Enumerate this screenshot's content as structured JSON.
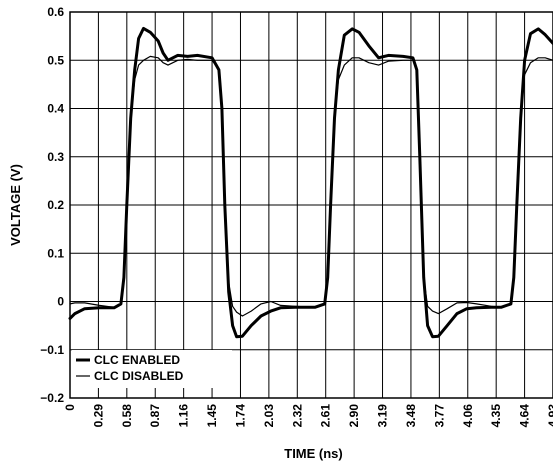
{
  "chart_data": {
    "type": "line",
    "xlabel": "TIME (ns)",
    "ylabel": "VOLTAGE (V)",
    "x_ticks": [
      "0",
      "0.29",
      "0.58",
      "0.87",
      "1.16",
      "1.45",
      "1.74",
      "2.03",
      "2.32",
      "2.61",
      "2.90",
      "3.19",
      "3.48",
      "3.77",
      "4.06",
      "4.35",
      "4.64",
      "4.93"
    ],
    "y_ticks": [
      "0.6",
      "0.5",
      "0.4",
      "0.3",
      "0.2",
      "0.1",
      "0",
      "−0.1",
      "−0.2"
    ],
    "xlim": [
      0,
      4.93
    ],
    "ylim": [
      -0.2,
      0.6
    ],
    "grid": true,
    "legend_position": "bottom-left",
    "series": [
      {
        "name": "CLC ENABLED",
        "style": "thick",
        "x": [
          0,
          0.05,
          0.15,
          0.3,
          0.45,
          0.52,
          0.55,
          0.58,
          0.62,
          0.66,
          0.7,
          0.75,
          0.82,
          0.9,
          0.95,
          1.0,
          1.05,
          1.1,
          1.2,
          1.3,
          1.45,
          1.52,
          1.55,
          1.58,
          1.62,
          1.66,
          1.7,
          1.76,
          1.85,
          1.95,
          2.05,
          2.15,
          2.3,
          2.5,
          2.6,
          2.63,
          2.66,
          2.7,
          2.74,
          2.8,
          2.88,
          2.95,
          3.05,
          3.15,
          3.25,
          3.4,
          3.5,
          3.54,
          3.57,
          3.61,
          3.65,
          3.7,
          3.76,
          3.85,
          3.95,
          4.05,
          4.15,
          4.3,
          4.4,
          4.5,
          4.53,
          4.56,
          4.6,
          4.64,
          4.7,
          4.78,
          4.85,
          4.93
        ],
        "y": [
          -0.035,
          -0.025,
          -0.015,
          -0.013,
          -0.013,
          -0.005,
          0.05,
          0.2,
          0.38,
          0.48,
          0.545,
          0.566,
          0.558,
          0.54,
          0.515,
          0.5,
          0.505,
          0.51,
          0.508,
          0.51,
          0.505,
          0.48,
          0.4,
          0.2,
          0.02,
          -0.05,
          -0.073,
          -0.072,
          -0.05,
          -0.03,
          -0.02,
          -0.013,
          -0.012,
          -0.012,
          -0.005,
          0.05,
          0.2,
          0.38,
          0.48,
          0.552,
          0.565,
          0.558,
          0.53,
          0.505,
          0.51,
          0.508,
          0.505,
          0.48,
          0.3,
          0.05,
          -0.05,
          -0.073,
          -0.072,
          -0.05,
          -0.025,
          -0.015,
          -0.013,
          -0.012,
          -0.012,
          -0.005,
          0.05,
          0.2,
          0.38,
          0.5,
          0.555,
          0.565,
          0.553,
          0.535
        ]
      },
      {
        "name": "CLC DISABLED",
        "style": "thin",
        "x": [
          0,
          0.05,
          0.15,
          0.3,
          0.45,
          0.52,
          0.55,
          0.58,
          0.62,
          0.66,
          0.7,
          0.75,
          0.82,
          0.9,
          0.95,
          1.0,
          1.05,
          1.1,
          1.2,
          1.3,
          1.45,
          1.52,
          1.55,
          1.58,
          1.62,
          1.66,
          1.7,
          1.76,
          1.85,
          1.95,
          2.05,
          2.15,
          2.3,
          2.5,
          2.6,
          2.63,
          2.66,
          2.7,
          2.74,
          2.8,
          2.88,
          2.95,
          3.05,
          3.15,
          3.25,
          3.4,
          3.5,
          3.54,
          3.57,
          3.61,
          3.65,
          3.7,
          3.76,
          3.85,
          3.95,
          4.05,
          4.15,
          4.3,
          4.4,
          4.5,
          4.53,
          4.56,
          4.6,
          4.64,
          4.7,
          4.78,
          4.85,
          4.93
        ],
        "y": [
          -0.005,
          -0.003,
          -0.003,
          -0.008,
          -0.012,
          -0.005,
          0.05,
          0.2,
          0.38,
          0.46,
          0.49,
          0.5,
          0.508,
          0.505,
          0.495,
          0.49,
          0.495,
          0.5,
          0.502,
          0.5,
          0.5,
          0.48,
          0.4,
          0.2,
          0.04,
          -0.01,
          -0.022,
          -0.03,
          -0.02,
          -0.005,
          0.0,
          -0.008,
          -0.01,
          -0.012,
          -0.005,
          0.05,
          0.2,
          0.38,
          0.46,
          0.49,
          0.505,
          0.505,
          0.495,
          0.49,
          0.498,
          0.5,
          0.5,
          0.48,
          0.3,
          0.05,
          -0.01,
          -0.02,
          -0.025,
          -0.015,
          -0.003,
          -0.002,
          -0.005,
          -0.01,
          -0.012,
          -0.005,
          0.05,
          0.2,
          0.38,
          0.47,
          0.495,
          0.505,
          0.505,
          0.5
        ]
      }
    ]
  }
}
